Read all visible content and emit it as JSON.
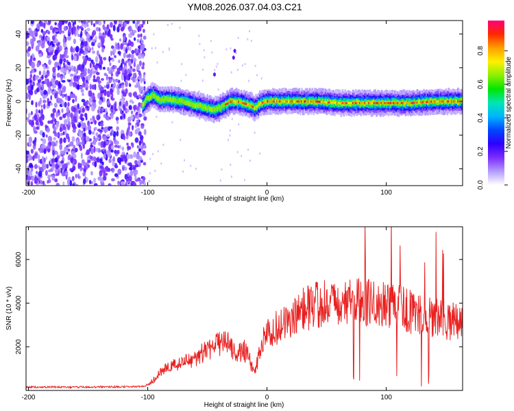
{
  "title": "YM08.2026.037.04.03.C21",
  "chart_data": [
    {
      "type": "heatmap",
      "xlabel": "Height of straight line (km)",
      "ylabel": "Frequency (Hz)",
      "xlim": [
        -202,
        164
      ],
      "ylim": [
        -50,
        48
      ],
      "xticks": [
        -200,
        -100,
        0,
        100
      ],
      "xtick_labels": [
        "-200",
        "-100",
        "0",
        "100"
      ],
      "yticks": [
        40,
        20,
        0,
        -20,
        -40
      ],
      "ytick_labels": [
        "40",
        "20",
        "0",
        "-20",
        "-40"
      ],
      "colorbar": {
        "label": "Normalized spectral amplitude",
        "range": [
          0,
          0.98
        ],
        "ticks": [
          0,
          0.2,
          0.4,
          0.6,
          0.8
        ],
        "tick_labels": [
          "0.0",
          "0.2",
          "0.4",
          "0.6",
          "0.8"
        ],
        "colormap": [
          "#ffffff",
          "#b39bff",
          "#7b2cff",
          "#2d00ff",
          "#0046ff",
          "#00b4ff",
          "#00e6b4",
          "#00e600",
          "#8cf000",
          "#fff000",
          "#ffa000",
          "#ff2800",
          "#ff0078"
        ]
      },
      "ridge_line": {
        "x": [
          -104,
          -100,
          -95,
          -90,
          -80,
          -70,
          -60,
          -50,
          -45,
          -40,
          -30,
          -25,
          -20,
          -15,
          -10,
          -5,
          0,
          10,
          20,
          40,
          60,
          80,
          100,
          120,
          140,
          164
        ],
        "y": [
          -2,
          2,
          4,
          1,
          1,
          0,
          -2,
          -4,
          -5,
          -4,
          0,
          0,
          -1,
          -2,
          -4,
          -1,
          0,
          0,
          0,
          0,
          -1,
          -1,
          -1,
          -1,
          0,
          0
        ]
      },
      "noise_region_x": [
        -202,
        -102
      ]
    },
    {
      "type": "line",
      "xlabel": "Height of straight line (km)",
      "ylabel": "SNR (10 * v/v)",
      "xlim": [
        -202,
        164
      ],
      "ylim": [
        0,
        7500
      ],
      "xticks": [
        -200,
        -100,
        0,
        100
      ],
      "xtick_labels": [
        "-200",
        "-100",
        "0",
        "100"
      ],
      "yticks": [
        2000,
        4000,
        6000
      ],
      "ytick_labels": [
        "2000",
        "4000",
        "6000"
      ],
      "color": "#e82020",
      "series": [
        {
          "name": "SNR",
          "x": [
            -202,
            -180,
            -160,
            -140,
            -120,
            -105,
            -100,
            -95,
            -90,
            -80,
            -70,
            -60,
            -50,
            -40,
            -35,
            -30,
            -25,
            -20,
            -15,
            -12,
            -10,
            -5,
            0,
            5,
            10,
            15,
            20,
            30,
            40,
            50,
            60,
            70,
            80,
            90,
            100,
            110,
            120,
            130,
            140,
            150,
            164
          ],
          "y": [
            150,
            160,
            150,
            160,
            170,
            180,
            260,
            500,
            800,
            1100,
            1300,
            1500,
            1900,
            2100,
            2200,
            2000,
            1700,
            1900,
            1500,
            900,
            800,
            2100,
            2500,
            2800,
            2900,
            3100,
            3300,
            3700,
            3900,
            4000,
            4050,
            4100,
            4000,
            4000,
            3900,
            3800,
            3600,
            3400,
            3300,
            3200,
            3100
          ]
        }
      ]
    }
  ]
}
